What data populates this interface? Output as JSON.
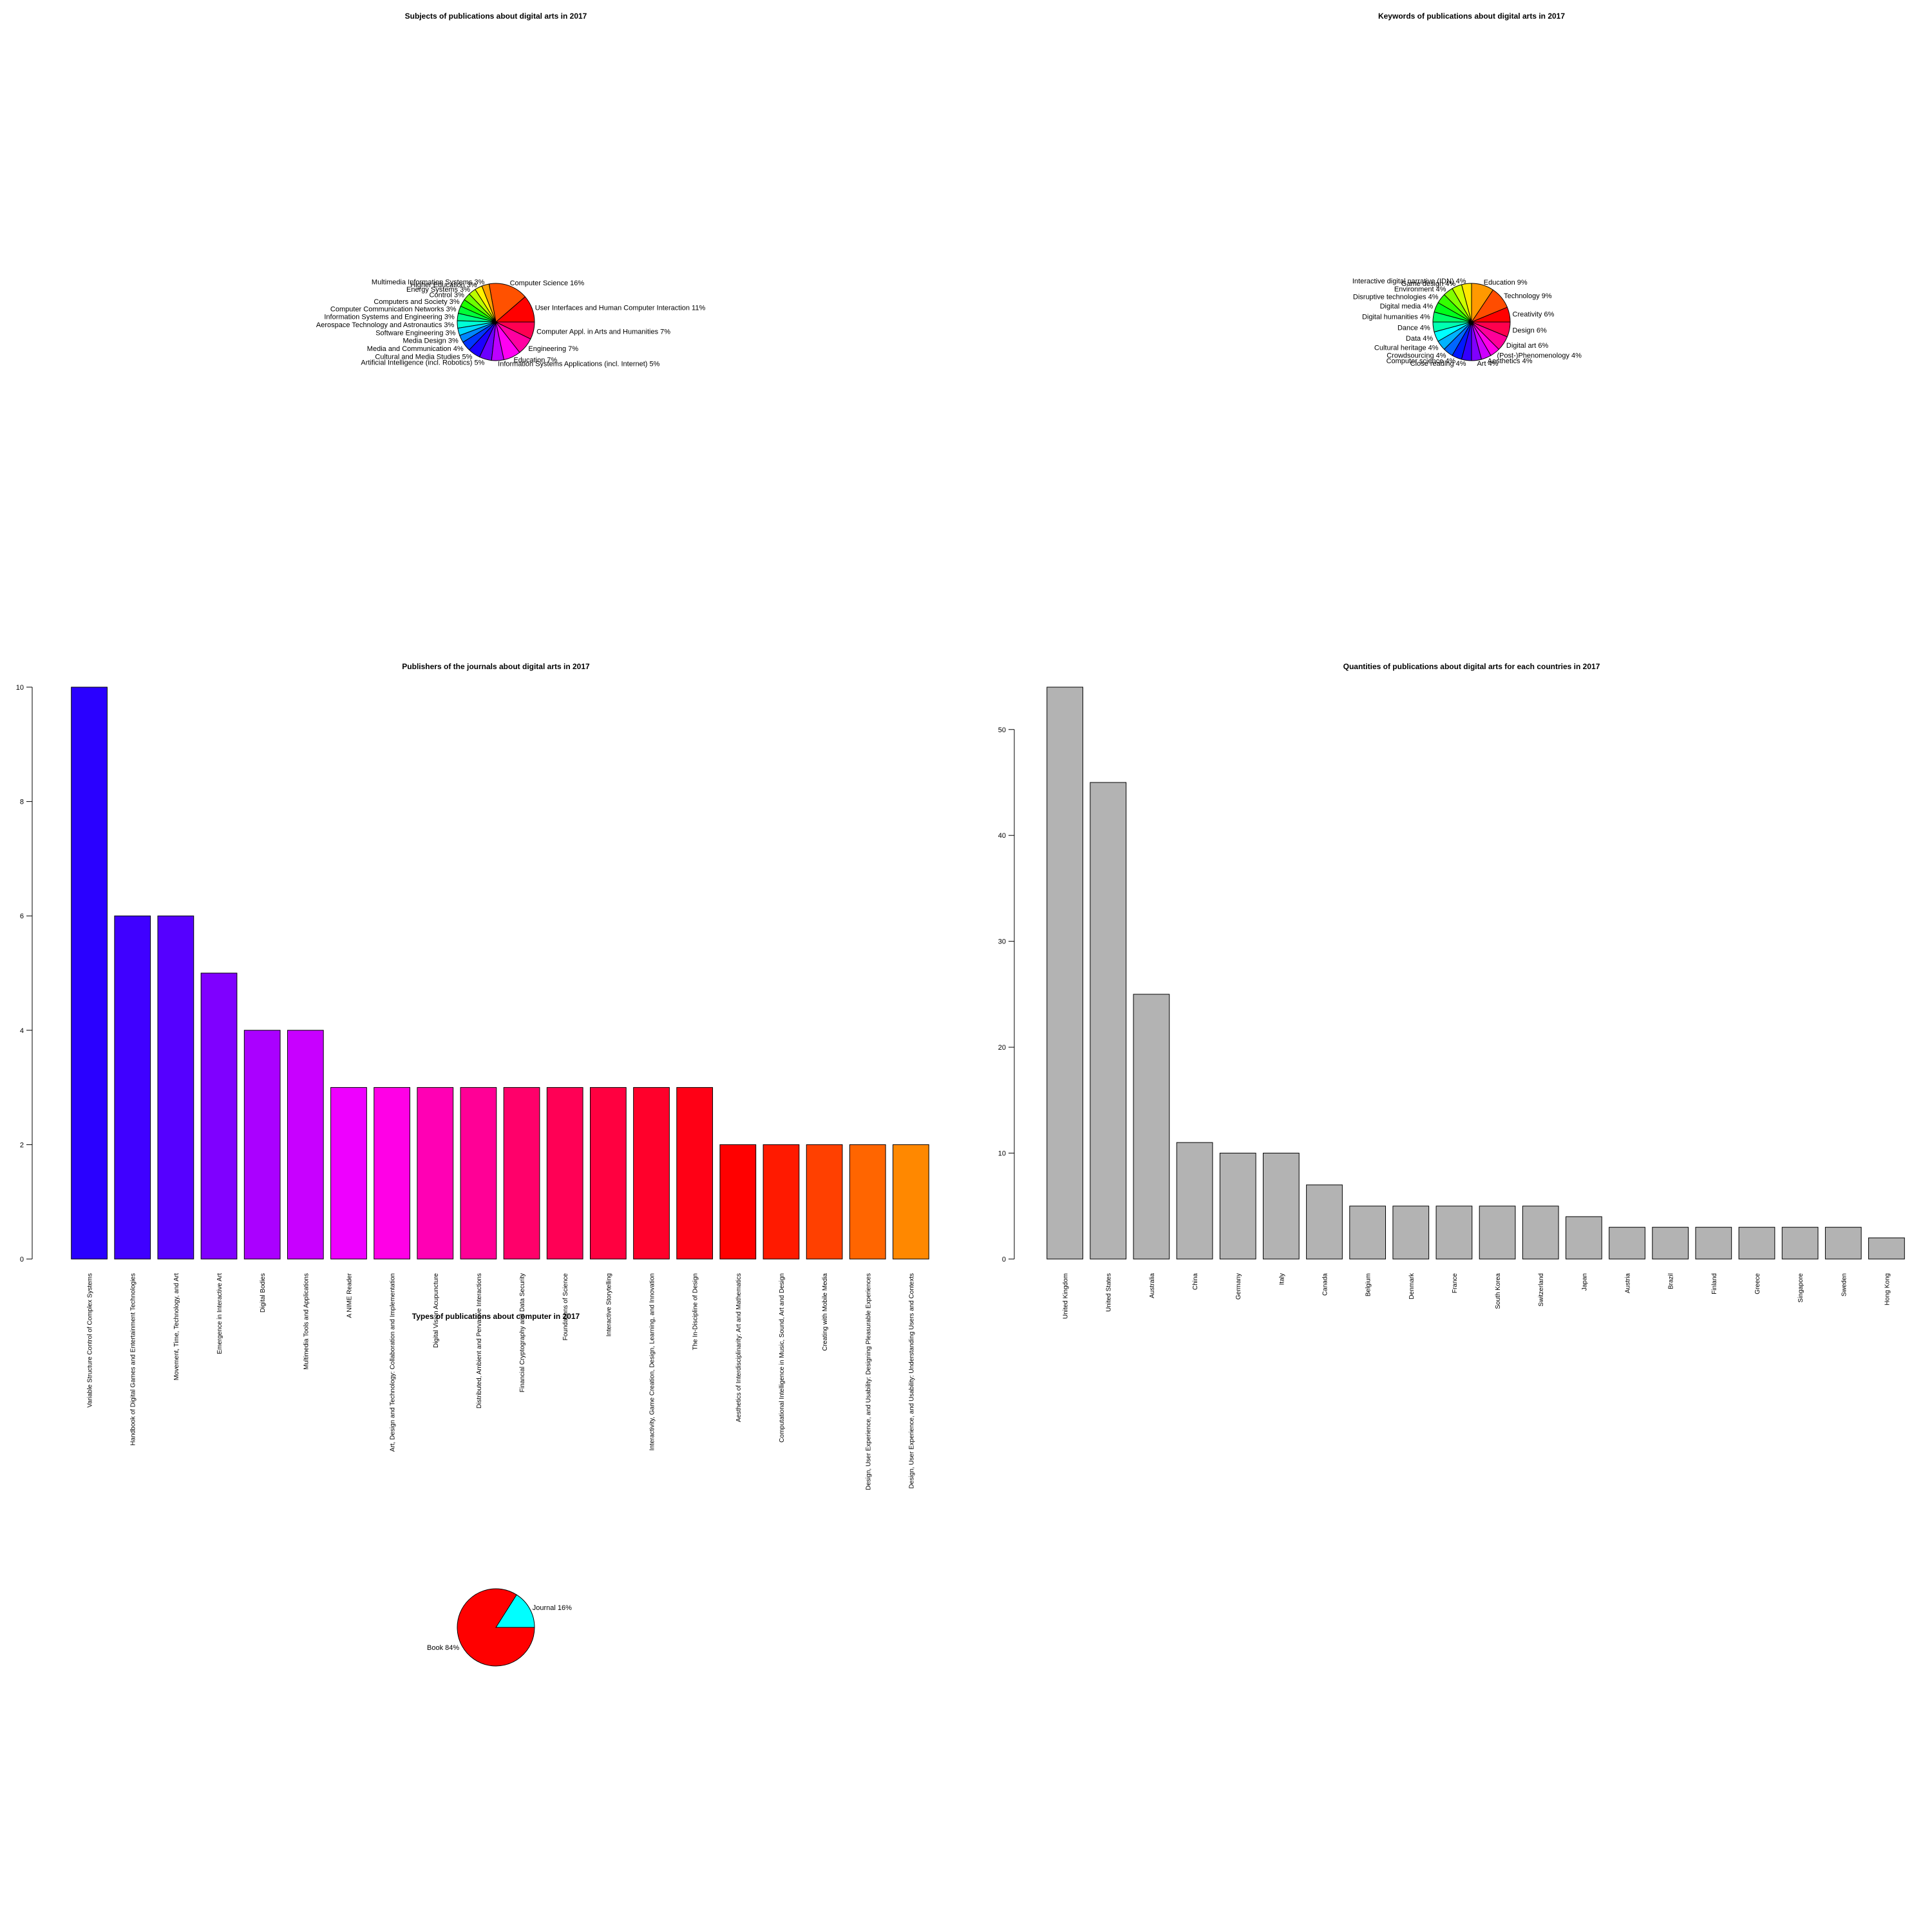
{
  "chart_data": [
    {
      "type": "pie",
      "title": "Subjects of publications about digital arts in 2017",
      "slices": [
        {
          "label": "User Interfaces and Human Computer Interaction 11%",
          "value": 11
        },
        {
          "label": "Computer Science 16%",
          "value": 16
        },
        {
          "label": "Multimedia Information Systems 3%",
          "value": 3
        },
        {
          "label": "Higher Education 3%",
          "value": 3
        },
        {
          "label": "Energy Systems 3%",
          "value": 3
        },
        {
          "label": "Control 3%",
          "value": 3
        },
        {
          "label": "Computers and Society 3%",
          "value": 3
        },
        {
          "label": "Computer Communication Networks 3%",
          "value": 3
        },
        {
          "label": "Information Systems and Engineering 3%",
          "value": 3
        },
        {
          "label": "Aerospace Technology and Astronautics 3%",
          "value": 3
        },
        {
          "label": "Software Engineering 3%",
          "value": 3
        },
        {
          "label": "Media Design 3%",
          "value": 3
        },
        {
          "label": "Media and Communication 4%",
          "value": 4
        },
        {
          "label": "Cultural and Media Studies 5%",
          "value": 5
        },
        {
          "label": "Artificial Intelligence (incl. Robotics) 5%",
          "value": 5
        },
        {
          "label": "Information Systems Applications (incl. Internet) 5%",
          "value": 5
        },
        {
          "label": "Education 7%",
          "value": 7
        },
        {
          "label": "Engineering 7%",
          "value": 7
        },
        {
          "label": "Computer Appl. in Arts and Humanities 7%",
          "value": 7
        }
      ]
    },
    {
      "type": "pie",
      "title": "Keywords of publications about digital arts in 2017",
      "slices": [
        {
          "label": "Creativity 6%",
          "value": 6
        },
        {
          "label": "Technology 9%",
          "value": 9
        },
        {
          "label": "Education 9%",
          "value": 9
        },
        {
          "label": "Interactive digital narrative (IDN) 4%",
          "value": 4
        },
        {
          "label": "Game design 4%",
          "value": 4
        },
        {
          "label": "Environment 4%",
          "value": 4
        },
        {
          "label": "Disruptive technologies 4%",
          "value": 4
        },
        {
          "label": "Digital media 4%",
          "value": 4
        },
        {
          "label": "Digital humanities 4%",
          "value": 4
        },
        {
          "label": "Dance 4%",
          "value": 4
        },
        {
          "label": "Data 4%",
          "value": 4
        },
        {
          "label": "Cultural heritage 4%",
          "value": 4
        },
        {
          "label": "Crowdsourcing 4%",
          "value": 4
        },
        {
          "label": "Computer science 4%",
          "value": 4
        },
        {
          "label": "Close reading 4%",
          "value": 4
        },
        {
          "label": "Art 4%",
          "value": 4
        },
        {
          "label": "Aesthetics 4%",
          "value": 4
        },
        {
          "label": "(Post-)Phenomenology 4%",
          "value": 4
        },
        {
          "label": "Digital art 6%",
          "value": 6
        },
        {
          "label": "Design 6%",
          "value": 6
        }
      ]
    },
    {
      "type": "bar",
      "title": "Publishers of the journals about digital arts in 2017",
      "categories": [
        "Variable Structure Control of Complex Systems",
        "Handbook of Digital Games and Entertainment Technologies",
        "Movement, Time, Technology, and Art",
        "Emergence in Interactive Art",
        "Digital Bodies",
        "Multimedia Tools and Applications",
        "A NIME Reader",
        "Art, Design and Technology: Collaboration and Implementation",
        "Digital Vision Acupuncture",
        "Distributed, Ambient and Pervasive Interactions",
        "Financial Cryptography and Data Security",
        "Foundations of Science",
        "Interactive Storytelling",
        "Interactivity, Game Creation, Design, Learning, and Innovation",
        "The In-Discipline of Design",
        "Aesthetics of Interdisciplinarity: Art and Mathematics",
        "Computational Intelligence in Music, Sound, Art and Design",
        "Creating with Mobile Media",
        "Design, User Experience, and Usability: Designing Pleasurable Experiences",
        "Design, User Experience, and Usability: Understanding Users and Contexts"
      ],
      "values": [
        10,
        6,
        6,
        5,
        4,
        4,
        3,
        3,
        3,
        3,
        3,
        3,
        3,
        3,
        3,
        2,
        2,
        2,
        2,
        2
      ],
      "colors": [
        "#2a00ff",
        "#3f00ff",
        "#5500ff",
        "#7f00ff",
        "#aa00ff",
        "#c800ff",
        "#ee00ff",
        "#ff00e6",
        "#ff00b4",
        "#ff0096",
        "#ff006a",
        "#ff0055",
        "#ff0040",
        "#ff002b",
        "#ff0015",
        "#ff0000",
        "#ff1a00",
        "#ff4000",
        "#ff6500",
        "#ff8800"
      ],
      "yticks": [
        0,
        2,
        4,
        6,
        8,
        10
      ],
      "ylim": [
        0,
        10
      ]
    },
    {
      "type": "bar",
      "title": "Quantities of publications about digital arts for each countries in 2017",
      "categories": [
        "United Kingdom",
        "United States",
        "Australia",
        "China",
        "Germany",
        "Italy",
        "Canada",
        "Belgium",
        "Denmark",
        "France",
        "South Korea",
        "Switzerland",
        "Japan",
        "Austria",
        "Brazil",
        "Finland",
        "Greece",
        "Singapore",
        "Sweden",
        "Hong Kong"
      ],
      "values": [
        54,
        45,
        25,
        11,
        10,
        10,
        7,
        5,
        5,
        5,
        5,
        5,
        4,
        3,
        3,
        3,
        3,
        3,
        3,
        2
      ],
      "bar_color": "#b3b3b3",
      "yticks": [
        0,
        10,
        20,
        30,
        40,
        50
      ],
      "ylim": [
        0,
        54
      ]
    },
    {
      "type": "pie",
      "title": "Types of publications about computer in 2017",
      "slices": [
        {
          "label": "Journal 16%",
          "value": 16,
          "color": "#00ffff"
        },
        {
          "label": "Book 84%",
          "value": 84,
          "color": "#ff0000"
        }
      ]
    }
  ]
}
